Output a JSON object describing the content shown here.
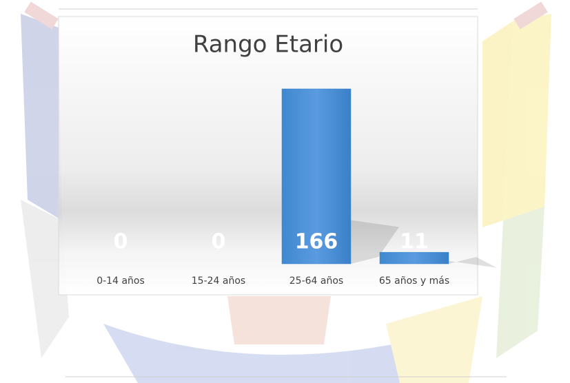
{
  "chart_data": {
    "type": "bar",
    "title": "Rango Etario",
    "categories": [
      "0-14 años",
      "15-24 años",
      "25-64 años",
      "65 años y más"
    ],
    "values": [
      0,
      0,
      166,
      11
    ],
    "color": "#3a87cf"
  }
}
